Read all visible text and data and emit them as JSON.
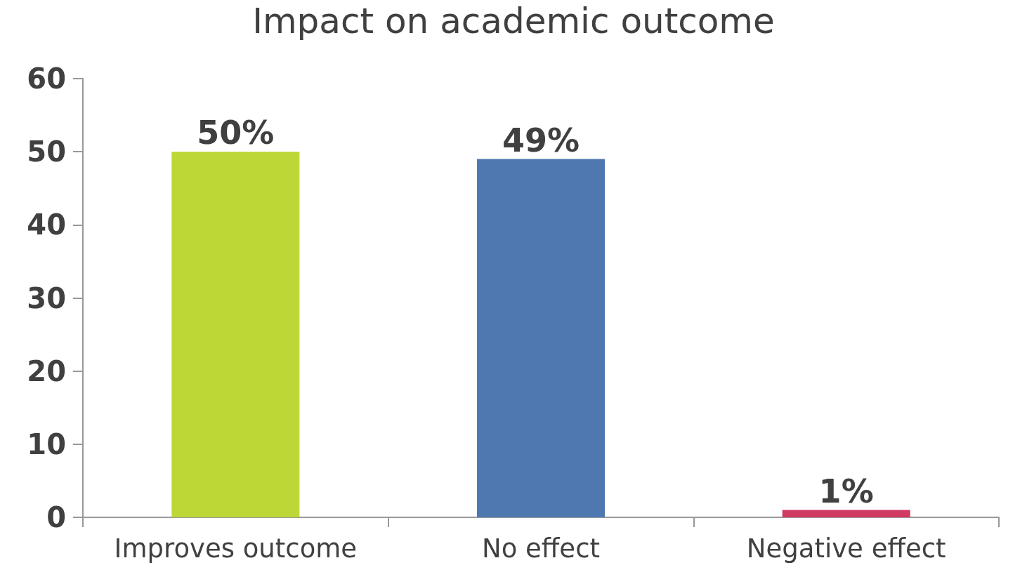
{
  "chart_data": {
    "type": "bar",
    "title": "Impact on academic outcome",
    "categories": [
      "Improves outcome",
      "No effect",
      "Negative effect"
    ],
    "values": [
      50,
      49,
      1
    ],
    "colors": [
      "#bdd736",
      "#4f78b1",
      "#d03a63"
    ],
    "value_labels": [
      "50%",
      "49%",
      "1%"
    ],
    "ylim": [
      0,
      60
    ],
    "yticks": [
      0,
      10,
      20,
      30,
      40,
      50,
      60
    ],
    "grid": false
  }
}
